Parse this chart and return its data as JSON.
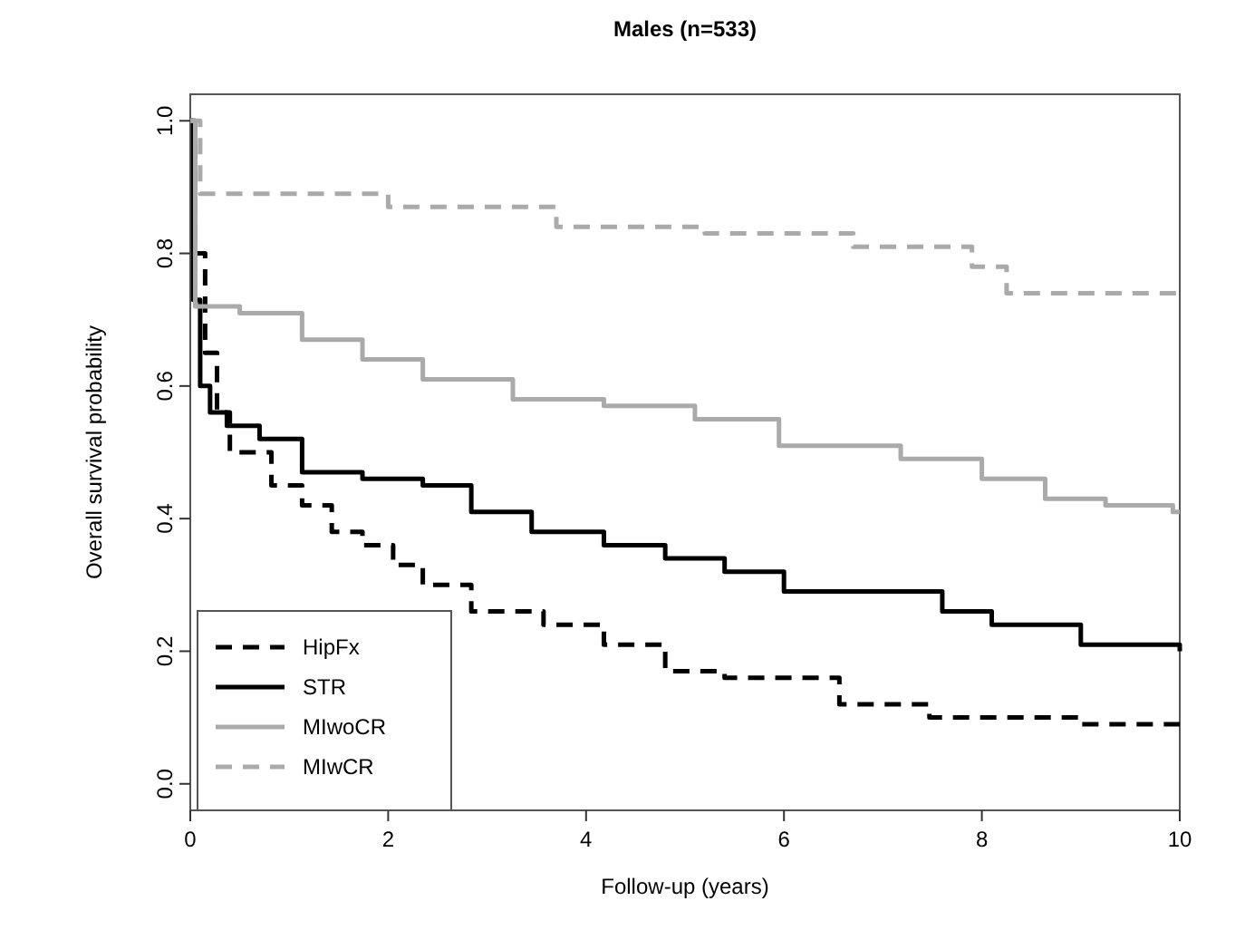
{
  "chart_data": {
    "type": "step",
    "title": "Males (n=533)",
    "xlabel": "Follow-up (years)",
    "ylabel": "Overall survival probability",
    "xlim": [
      0,
      10
    ],
    "ylim": [
      -0.04,
      1.04
    ],
    "xticks": [
      0,
      2,
      4,
      6,
      8,
      10
    ],
    "yticks": [
      {
        "value": 0,
        "label": "0.0"
      },
      {
        "value": 0.2,
        "label": "0.2"
      },
      {
        "value": 0.4,
        "label": "0.4"
      },
      {
        "value": 0.6,
        "label": "0.6"
      },
      {
        "value": 0.8,
        "label": "0.8"
      },
      {
        "value": 1,
        "label": "1.0"
      }
    ],
    "legend": "bottom left",
    "grid": false,
    "series": [
      {
        "name": "HipFx",
        "color": "#000000",
        "line_style": "dashed",
        "x": [
          0,
          0.05,
          0.15,
          0.27,
          0.4,
          0.82,
          1.13,
          1.43,
          1.74,
          2.05,
          2.35,
          2.84,
          3.57,
          4.18,
          4.8,
          5.4,
          6.56,
          7.47,
          9.0,
          10
        ],
        "values": [
          1.0,
          0.8,
          0.65,
          0.56,
          0.5,
          0.45,
          0.42,
          0.38,
          0.36,
          0.33,
          0.3,
          0.26,
          0.24,
          0.21,
          0.17,
          0.16,
          0.12,
          0.1,
          0.09,
          0.09
        ]
      },
      {
        "name": "STR",
        "color": "#000000",
        "line_style": "solid",
        "x": [
          0,
          0.03,
          0.1,
          0.2,
          0.37,
          0.7,
          1.13,
          1.74,
          2.35,
          2.84,
          3.45,
          4.18,
          4.8,
          5.4,
          6.0,
          6.87,
          7.6,
          8.1,
          9.0,
          9.9,
          10
        ],
        "values": [
          1.0,
          0.73,
          0.6,
          0.56,
          0.54,
          0.52,
          0.47,
          0.46,
          0.45,
          0.41,
          0.38,
          0.36,
          0.34,
          0.32,
          0.29,
          0.29,
          0.26,
          0.24,
          0.21,
          0.21,
          0.2
        ]
      },
      {
        "name": "MIwoCR",
        "color": "#aaaaaa",
        "line_style": "solid",
        "x": [
          0,
          0.05,
          0.5,
          1.13,
          1.74,
          2.35,
          3.26,
          4.18,
          5.1,
          5.95,
          7.18,
          8.0,
          8.64,
          9.25,
          9.93,
          10
        ],
        "values": [
          1.0,
          0.72,
          0.71,
          0.67,
          0.64,
          0.61,
          0.58,
          0.57,
          0.55,
          0.51,
          0.49,
          0.46,
          0.43,
          0.42,
          0.41,
          0.41
        ]
      },
      {
        "name": "MIwCR",
        "color": "#aaaaaa",
        "line_style": "dashed",
        "x": [
          0,
          0.1,
          2.0,
          3.7,
          5.2,
          6.7,
          7.9,
          8.25,
          10
        ],
        "values": [
          1.0,
          0.89,
          0.87,
          0.84,
          0.83,
          0.81,
          0.78,
          0.74,
          0.74
        ]
      }
    ]
  }
}
